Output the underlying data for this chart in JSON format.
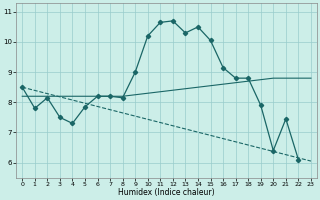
{
  "xlabel": "Humidex (Indice chaleur)",
  "x_ticks": [
    0,
    1,
    2,
    3,
    4,
    5,
    6,
    7,
    8,
    9,
    10,
    11,
    12,
    13,
    14,
    15,
    16,
    17,
    18,
    19,
    20,
    21,
    22,
    23
  ],
  "y_ticks": [
    6,
    7,
    8,
    9,
    10,
    11
  ],
  "ylim": [
    5.5,
    11.3
  ],
  "xlim": [
    -0.5,
    23.5
  ],
  "bg_color": "#cceee8",
  "grid_color": "#99cccc",
  "line_color": "#1a6666",
  "line1_x": [
    0,
    1,
    2,
    3,
    4,
    5,
    6,
    7,
    8,
    9,
    10,
    11,
    12,
    13,
    14,
    15,
    16,
    17,
    18,
    19,
    20,
    21,
    22
  ],
  "line1_y": [
    8.5,
    7.8,
    8.15,
    7.5,
    7.3,
    7.85,
    8.2,
    8.2,
    8.15,
    9.0,
    10.2,
    10.65,
    10.7,
    10.3,
    10.5,
    10.05,
    9.15,
    8.8,
    8.8,
    7.9,
    6.4,
    7.45,
    6.1
  ],
  "line2_x": [
    0,
    1,
    2,
    3,
    4,
    5,
    6,
    7,
    8,
    9,
    10,
    11,
    12,
    13,
    14,
    15,
    16,
    17,
    18,
    19,
    20,
    21,
    22,
    23
  ],
  "line2_y": [
    8.2,
    8.2,
    8.2,
    8.2,
    8.2,
    8.2,
    8.2,
    8.2,
    8.2,
    8.25,
    8.3,
    8.35,
    8.4,
    8.45,
    8.5,
    8.55,
    8.6,
    8.65,
    8.7,
    8.75,
    8.8,
    8.8,
    8.8,
    8.8
  ],
  "line3_x": [
    0,
    23
  ],
  "line3_y": [
    8.5,
    6.05
  ]
}
